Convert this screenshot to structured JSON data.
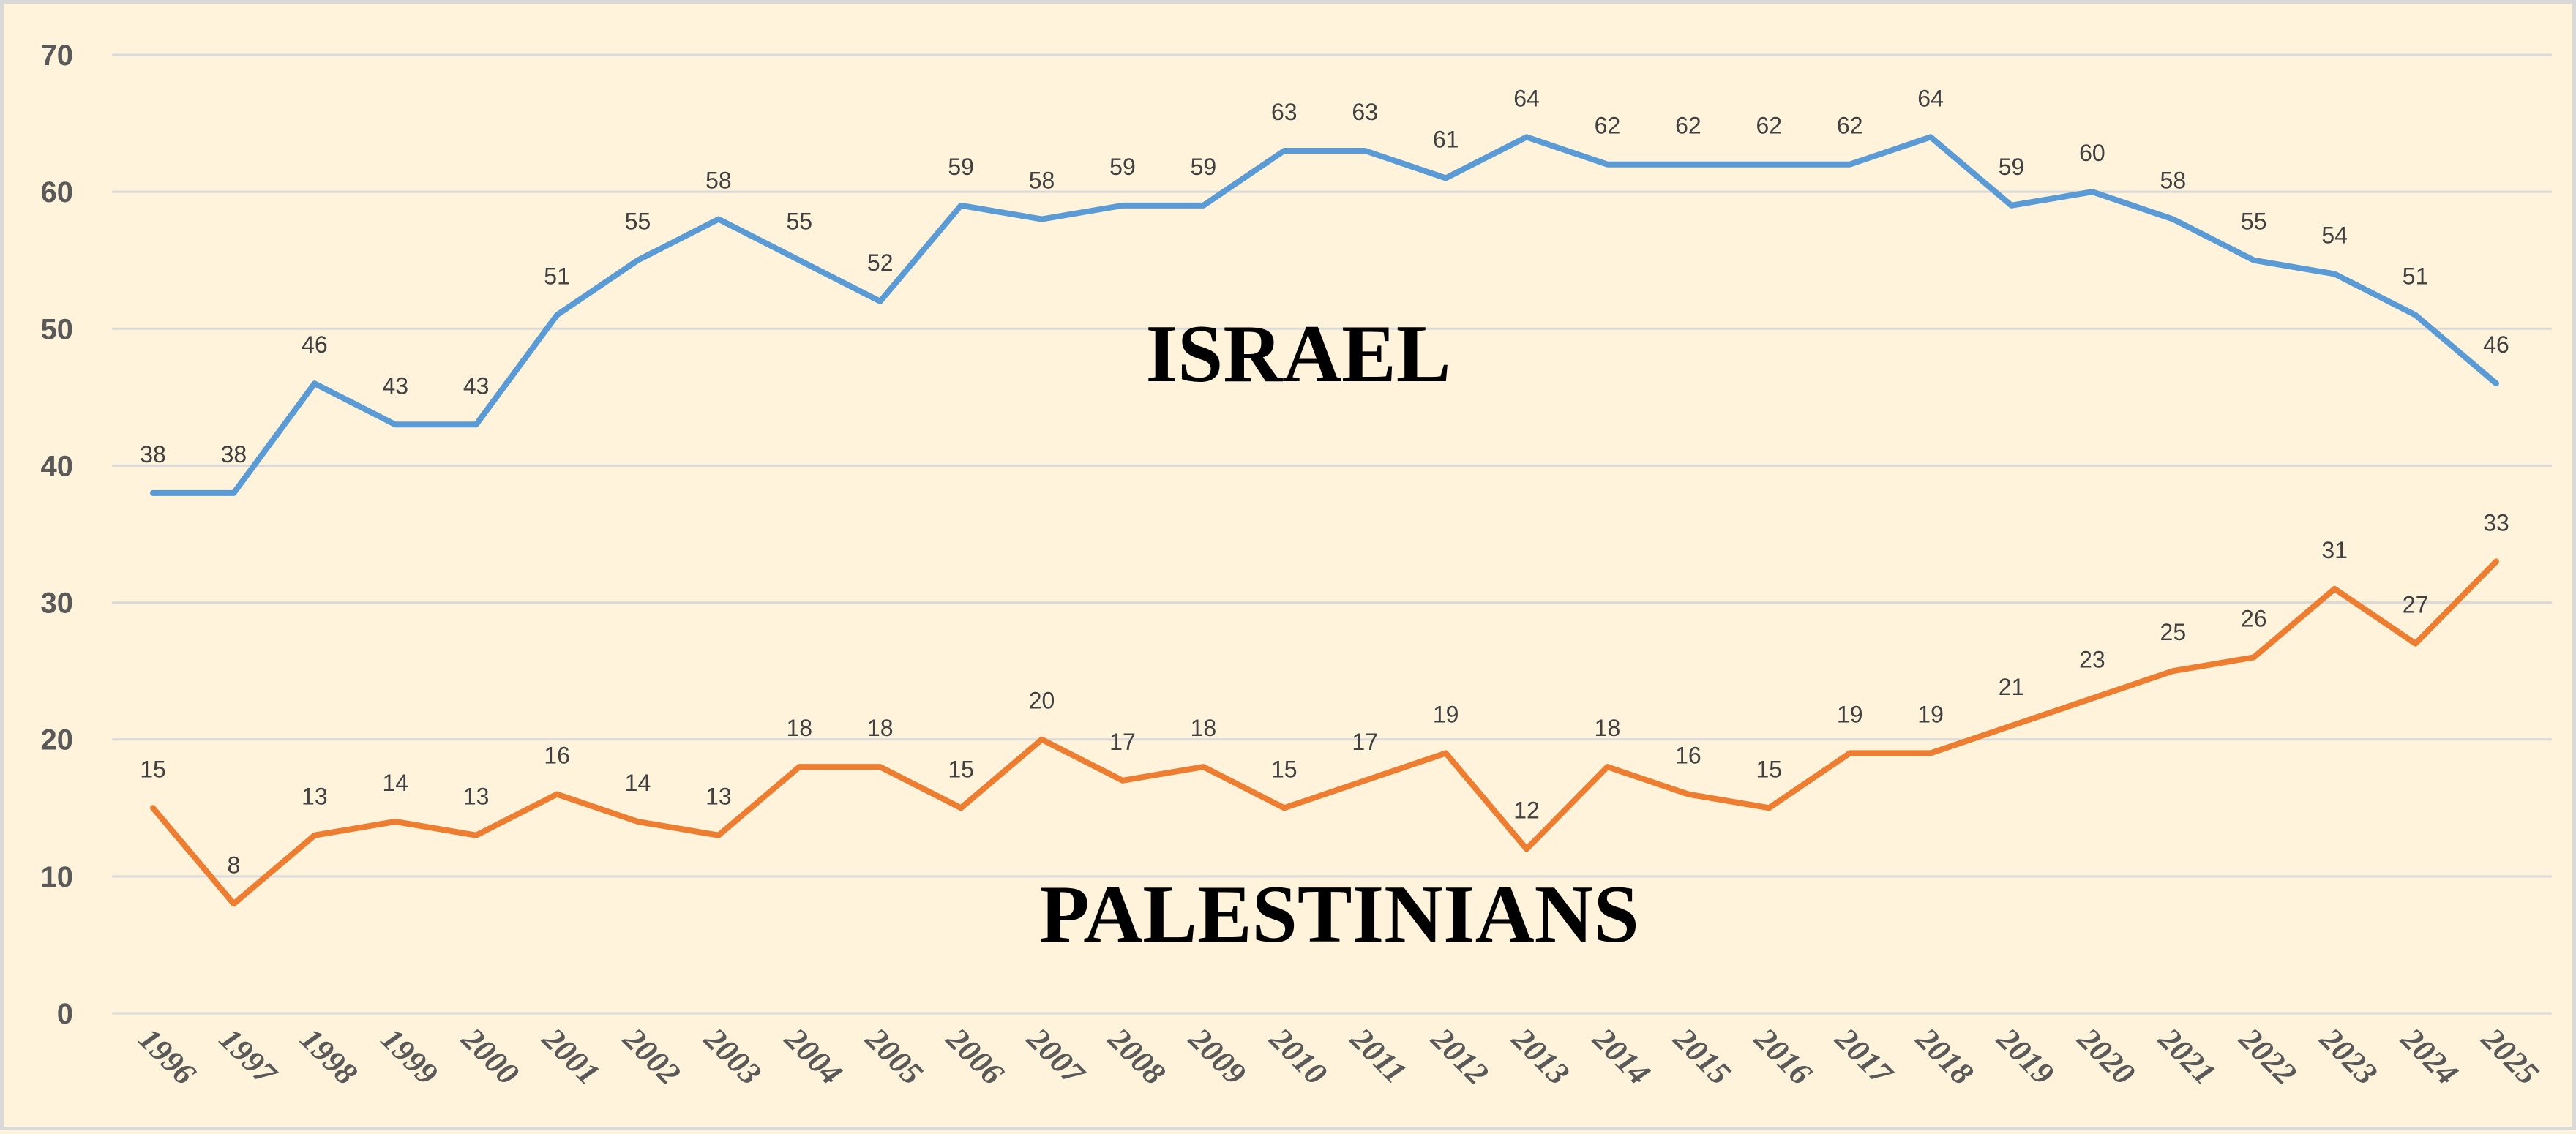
{
  "chart_data": {
    "type": "line",
    "title": "",
    "xlabel": "",
    "ylabel": "",
    "ylim": [
      0,
      70
    ],
    "yticks": [
      0,
      10,
      20,
      30,
      40,
      50,
      60,
      70
    ],
    "grid": true,
    "categories": [
      "1996",
      "1997",
      "1998",
      "1999",
      "2000",
      "2001",
      "2002",
      "2003",
      "2004",
      "2005",
      "2006",
      "2007",
      "2008",
      "2009",
      "2010",
      "2011",
      "2012",
      "2013",
      "2014",
      "2015",
      "2016",
      "2017",
      "2018",
      "2019",
      "2020",
      "2021",
      "2022",
      "2023",
      "2024",
      "2025"
    ],
    "series": [
      {
        "name": "ISRAEL",
        "color": "#5b9bd5",
        "values": [
          38,
          38,
          46,
          43,
          43,
          51,
          55,
          58,
          55,
          52,
          59,
          58,
          59,
          59,
          63,
          63,
          61,
          64,
          62,
          62,
          62,
          62,
          64,
          59,
          60,
          58,
          55,
          54,
          51,
          46
        ]
      },
      {
        "name": "PALESTINIANS",
        "color": "#ed7d31",
        "values": [
          15,
          8,
          13,
          14,
          13,
          16,
          14,
          13,
          18,
          18,
          15,
          20,
          17,
          18,
          15,
          17,
          19,
          12,
          18,
          16,
          15,
          19,
          19,
          21,
          23,
          25,
          26,
          31,
          27,
          33
        ]
      }
    ],
    "annotations": [
      "ISRAEL",
      "PALESTINIANS"
    ],
    "legend": "none (inline labels)"
  }
}
